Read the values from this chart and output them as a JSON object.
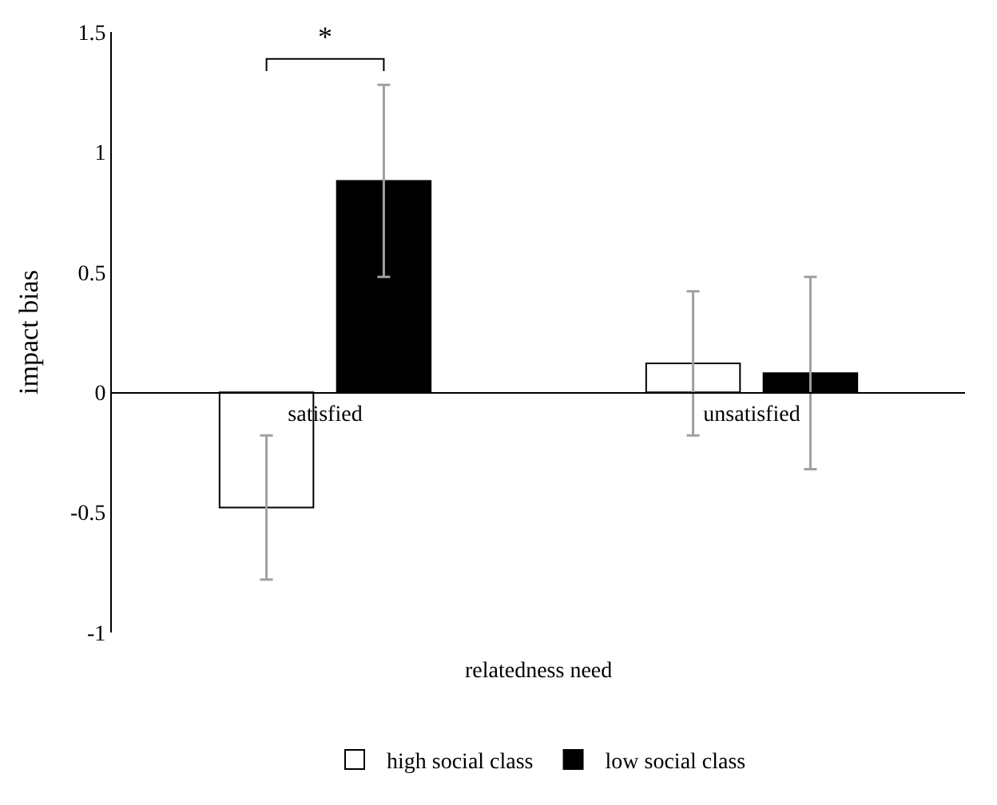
{
  "chart_data": {
    "type": "bar",
    "xlabel": "relatedness need",
    "ylabel": "impact bias",
    "categories": [
      "satisfied",
      "unsatisfied"
    ],
    "series": [
      {
        "name": "high social class",
        "color": "#ffffff",
        "values": [
          -0.48,
          0.12
        ],
        "errors": [
          0.3,
          0.3
        ]
      },
      {
        "name": "low social class",
        "color": "#000000",
        "values": [
          0.88,
          0.08
        ],
        "errors": [
          0.4,
          0.4
        ]
      }
    ],
    "ylim": [
      -1,
      1.5
    ],
    "yticks": [
      1.5,
      1,
      0.5,
      0,
      -0.5,
      -1
    ],
    "legend": "bottom",
    "annotations": [
      "*"
    ]
  }
}
